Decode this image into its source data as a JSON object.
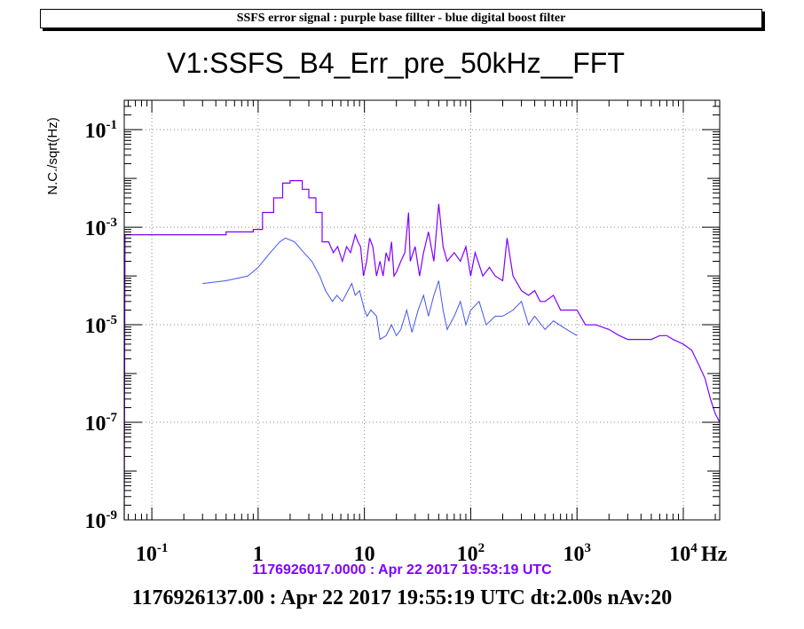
{
  "banner": "SSFS error signal : purple base fillter - blue digital boost filter",
  "chart_data": {
    "type": "line",
    "title": "V1:SSFS_B4_Err_pre_50kHz__FFT",
    "ylabel": "N.C./sqrt(Hz)",
    "xlabel": "Hz",
    "xscale": "log",
    "yscale": "log",
    "xlim": [
      0.055,
      22000
    ],
    "ylim": [
      1e-09,
      0.4
    ],
    "grid": true,
    "x_ticks": [
      {
        "value": 0.1,
        "base": "10",
        "exp": "-1"
      },
      {
        "value": 1,
        "base": "1",
        "exp": ""
      },
      {
        "value": 10,
        "base": "10",
        "exp": ""
      },
      {
        "value": 100,
        "base": "10",
        "exp": "2"
      },
      {
        "value": 1000,
        "base": "10",
        "exp": "3"
      },
      {
        "value": 10000,
        "base": "10",
        "exp": "4"
      }
    ],
    "y_ticks": [
      {
        "value": 1e-09,
        "base": "10",
        "exp": "-9"
      },
      {
        "value": 1e-07,
        "base": "10",
        "exp": "-7"
      },
      {
        "value": 1e-05,
        "base": "10",
        "exp": "-5"
      },
      {
        "value": 0.001,
        "base": "10",
        "exp": "-3"
      },
      {
        "value": 0.1,
        "base": "10",
        "exp": "-1"
      }
    ],
    "series": [
      {
        "color": "#8000ff",
        "points": [
          [
            0.055,
            1e-09
          ],
          [
            0.056,
            0.0007
          ],
          [
            0.5,
            0.0007
          ],
          [
            0.5,
            0.0008
          ],
          [
            0.9,
            0.0008
          ],
          [
            0.9,
            0.0009
          ],
          [
            1.1,
            0.0009
          ],
          [
            1.1,
            0.002
          ],
          [
            1.4,
            0.002
          ],
          [
            1.4,
            0.004
          ],
          [
            1.7,
            0.004
          ],
          [
            1.7,
            0.008
          ],
          [
            2.0,
            0.008
          ],
          [
            2.0,
            0.009
          ],
          [
            2.6,
            0.009
          ],
          [
            2.6,
            0.006
          ],
          [
            3.0,
            0.006
          ],
          [
            3.0,
            0.004
          ],
          [
            3.5,
            0.004
          ],
          [
            3.5,
            0.002
          ],
          [
            4.0,
            0.002
          ],
          [
            4.0,
            0.0005
          ],
          [
            4.6,
            0.0005
          ],
          [
            5.1,
            0.0003
          ],
          [
            5.6,
            0.0004
          ],
          [
            6.2,
            0.0002
          ],
          [
            6.8,
            0.0004
          ],
          [
            7.4,
            0.0003
          ],
          [
            8.2,
            0.0007
          ],
          [
            8.7,
            0.0005
          ],
          [
            9.2,
            0.0004
          ],
          [
            9.8,
            0.0001
          ],
          [
            10.5,
            0.0002
          ],
          [
            11.2,
            0.0006
          ],
          [
            12,
            0.0004
          ],
          [
            13,
            0.0001
          ],
          [
            14,
            0.0002
          ],
          [
            15,
            0.0001
          ],
          [
            16,
            0.0003
          ],
          [
            17,
            0.0002
          ],
          [
            18,
            0.0005
          ],
          [
            19,
            0.0001
          ],
          [
            20,
            0.00012
          ],
          [
            22,
            0.0002
          ],
          [
            24,
            0.0003
          ],
          [
            26,
            0.002
          ],
          [
            27,
            0.0002
          ],
          [
            30,
            0.0004
          ],
          [
            33,
            0.0001
          ],
          [
            36,
            0.0003
          ],
          [
            40,
            0.0008
          ],
          [
            45,
            0.0002
          ],
          [
            50,
            0.003
          ],
          [
            55,
            0.0004
          ],
          [
            60,
            0.0002
          ],
          [
            70,
            0.0003
          ],
          [
            80,
            0.0002
          ],
          [
            90,
            0.0004
          ],
          [
            100,
            0.0001
          ],
          [
            110,
            0.0003
          ],
          [
            130,
            0.0001
          ],
          [
            150,
            0.00015
          ],
          [
            170,
            0.0001
          ],
          [
            200,
            8e-05
          ],
          [
            220,
            0.0006
          ],
          [
            250,
            0.0001
          ],
          [
            300,
            5e-05
          ],
          [
            350,
            4e-05
          ],
          [
            400,
            5e-05
          ],
          [
            450,
            3e-05
          ],
          [
            500,
            3e-05
          ],
          [
            600,
            4e-05
          ],
          [
            700,
            2e-05
          ],
          [
            800,
            2e-05
          ],
          [
            1000,
            2e-05
          ],
          [
            1200,
            1e-05
          ],
          [
            1500,
            1e-05
          ],
          [
            2000,
            8e-06
          ],
          [
            2500,
            6e-06
          ],
          [
            3000,
            5e-06
          ],
          [
            4000,
            5e-06
          ],
          [
            5000,
            5e-06
          ],
          [
            6000,
            6e-06
          ],
          [
            7000,
            6e-06
          ],
          [
            8000,
            5e-06
          ],
          [
            10000,
            4e-06
          ],
          [
            12000,
            3e-06
          ],
          [
            14000,
            1.5e-06
          ],
          [
            16000,
            8e-07
          ],
          [
            18000,
            3e-07
          ],
          [
            20000,
            1.5e-07
          ],
          [
            22000,
            1e-07
          ]
        ]
      },
      {
        "color": "#4455ee",
        "points": [
          [
            0.3,
            7e-05
          ],
          [
            0.5,
            8e-05
          ],
          [
            0.8,
            0.0001
          ],
          [
            1,
            0.00015
          ],
          [
            1.3,
            0.0003
          ],
          [
            1.6,
            0.0005
          ],
          [
            1.8,
            0.0006
          ],
          [
            2.2,
            0.0005
          ],
          [
            2.7,
            0.0003
          ],
          [
            3.2,
            0.0002
          ],
          [
            3.8,
            0.0001
          ],
          [
            4.3,
            5e-05
          ],
          [
            5,
            3e-05
          ],
          [
            5.5,
            4e-05
          ],
          [
            6.2,
            3e-05
          ],
          [
            7,
            5e-05
          ],
          [
            7.6,
            7e-05
          ],
          [
            8.2,
            4e-05
          ],
          [
            9,
            5e-05
          ],
          [
            10,
            2e-05
          ],
          [
            10.6,
            1.5e-05
          ],
          [
            11.5,
            2e-05
          ],
          [
            13,
            1.5e-05
          ],
          [
            14,
            5e-06
          ],
          [
            16,
            6e-06
          ],
          [
            18,
            1e-05
          ],
          [
            20,
            6e-06
          ],
          [
            22,
            8e-06
          ],
          [
            25,
            2e-05
          ],
          [
            28,
            7e-06
          ],
          [
            32,
            2e-05
          ],
          [
            36,
            4e-05
          ],
          [
            40,
            1.5e-05
          ],
          [
            45,
            4e-05
          ],
          [
            50,
            8e-05
          ],
          [
            55,
            2e-05
          ],
          [
            60,
            8e-06
          ],
          [
            70,
            1.5e-05
          ],
          [
            80,
            3e-05
          ],
          [
            90,
            1e-05
          ],
          [
            100,
            2e-05
          ],
          [
            120,
            3e-05
          ],
          [
            140,
            1e-05
          ],
          [
            170,
            1.5e-05
          ],
          [
            200,
            1.5e-05
          ],
          [
            250,
            2e-05
          ],
          [
            300,
            3e-05
          ],
          [
            350,
            1e-05
          ],
          [
            400,
            1.5e-05
          ],
          [
            500,
            8e-06
          ],
          [
            600,
            1.2e-05
          ],
          [
            800,
            8e-06
          ],
          [
            1000,
            6e-06
          ]
        ]
      }
    ]
  },
  "subtitle1": {
    "text": "1176926017.0000 : Apr 22 2017 19:53:19 UTC",
    "color": "#8000ff"
  },
  "subtitle2": "1176926137.00 : Apr 22 2017 19:55:19 UTC dt:2.00s nAv:20"
}
